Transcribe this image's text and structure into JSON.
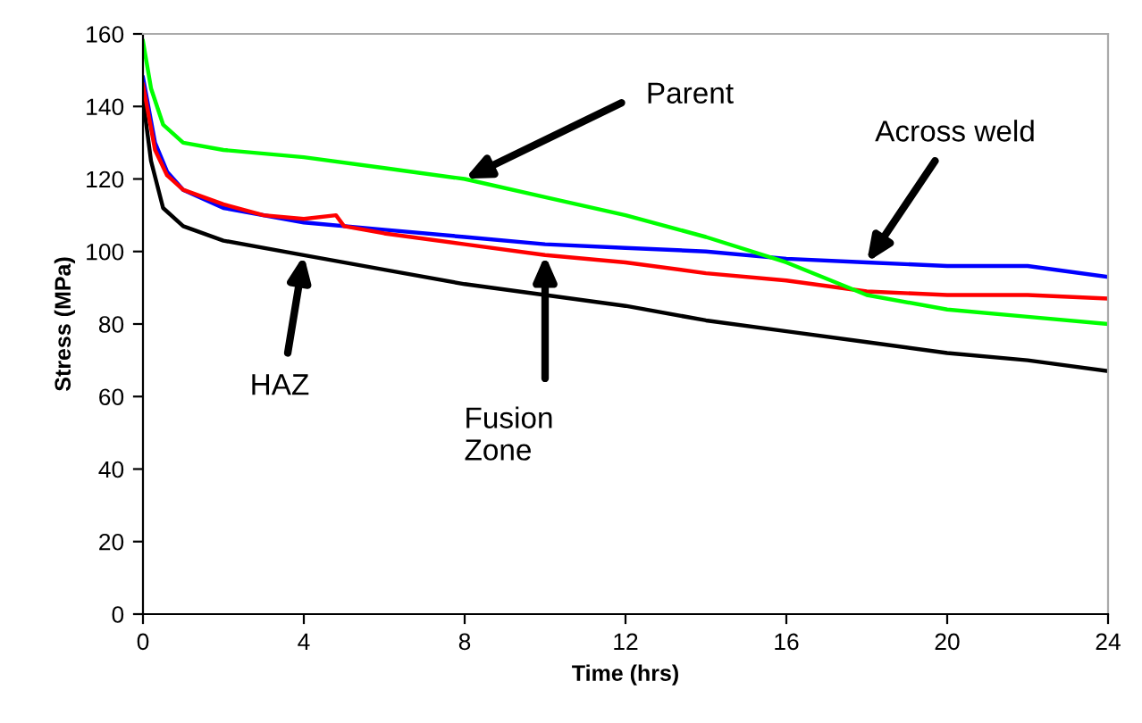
{
  "chart_data": {
    "type": "line",
    "xlabel": "Time (hrs)",
    "ylabel": "Stress (MPa)",
    "xlim": [
      0,
      24
    ],
    "xticks": [
      0,
      4,
      8,
      12,
      16,
      20,
      24
    ],
    "ylim": [
      0,
      160
    ],
    "yticks": [
      0,
      20,
      40,
      60,
      80,
      100,
      120,
      140,
      160
    ],
    "grid": false,
    "legend": false,
    "marker": "none",
    "line_style": "solid",
    "series": [
      {
        "color": "#000000",
        "x": [
          0,
          0.2,
          0.5,
          1,
          2,
          4,
          6,
          8,
          10,
          12,
          14,
          16,
          18,
          20,
          22,
          24
        ],
        "values": [
          142,
          125,
          112,
          107,
          103,
          99,
          95,
          91,
          88,
          85,
          81,
          78,
          75,
          72,
          70,
          67
        ]
      },
      {
        "color": "#0000ff",
        "x": [
          0,
          0.3,
          0.6,
          1,
          2,
          4,
          6,
          8,
          10,
          12,
          14,
          16,
          18,
          20,
          22,
          24
        ],
        "values": [
          148,
          130,
          122,
          117,
          112,
          108,
          106,
          104,
          102,
          101,
          100,
          98,
          97,
          96,
          96,
          93
        ]
      },
      {
        "color": "#ff0000",
        "x": [
          0,
          0.3,
          0.6,
          1,
          2,
          3,
          4,
          4.8,
          5,
          6,
          8,
          10,
          12,
          14,
          16,
          18,
          20,
          22,
          24
        ],
        "values": [
          146,
          128,
          121,
          117,
          113,
          110,
          109,
          110,
          107,
          105,
          102,
          99,
          97,
          94,
          92,
          89,
          88,
          88,
          87
        ]
      },
      {
        "color": "#00ff00",
        "x": [
          0,
          0.2,
          0.5,
          1,
          2,
          4,
          6,
          8,
          10,
          12,
          14,
          16,
          18,
          20,
          22,
          24
        ],
        "values": [
          158,
          145,
          135,
          130,
          128,
          126,
          123,
          120,
          115,
          110,
          104,
          97,
          88,
          84,
          82,
          80
        ]
      }
    ],
    "annotations": [
      {
        "text": "Parent",
        "x": 8,
        "y": 120
      },
      {
        "text": "Across weld",
        "x": 18,
        "y": 97
      },
      {
        "text": "HAZ",
        "x": 4,
        "y": 99
      },
      {
        "text": "Fusion\nZone",
        "x": 10,
        "y": 99
      }
    ]
  }
}
